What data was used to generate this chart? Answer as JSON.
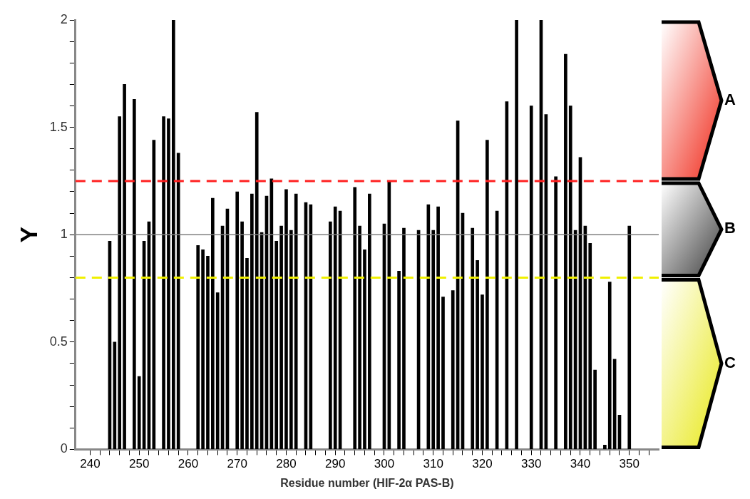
{
  "chart_data": {
    "type": "bar",
    "xlabel": "Residue number (HIF-2α PAS-B)",
    "ylabel": "Y",
    "x": [
      244,
      245,
      246,
      247,
      249,
      250,
      251,
      252,
      253,
      255,
      256,
      257,
      258,
      262,
      263,
      264,
      265,
      266,
      267,
      268,
      270,
      271,
      272,
      273,
      274,
      275,
      276,
      277,
      278,
      279,
      280,
      281,
      282,
      284,
      285,
      289,
      290,
      291,
      294,
      295,
      296,
      297,
      300,
      301,
      303,
      304,
      307,
      309,
      310,
      311,
      312,
      314,
      315,
      316,
      318,
      319,
      320,
      321,
      323,
      325,
      327,
      330,
      332,
      333,
      335,
      337,
      338,
      339,
      340,
      341,
      342,
      343,
      345,
      346,
      347,
      348,
      350
    ],
    "values": [
      0.97,
      0.5,
      1.55,
      1.7,
      1.63,
      0.34,
      0.97,
      1.06,
      1.44,
      1.55,
      1.54,
      2,
      1.38,
      0.95,
      0.93,
      0.9,
      1.17,
      0.73,
      1.04,
      1.12,
      1.2,
      1.06,
      0.89,
      1.19,
      1.57,
      1.01,
      1.18,
      1.26,
      0.97,
      1.04,
      1.21,
      1.02,
      1.19,
      1.15,
      1.14,
      1.06,
      1.13,
      1.11,
      1.22,
      1.04,
      0.93,
      1.19,
      1.05,
      1.25,
      0.83,
      1.03,
      1.02,
      1.14,
      1.02,
      1.13,
      0.71,
      0.74,
      1.53,
      1.1,
      1.03,
      0.88,
      0.72,
      1.44,
      1.11,
      1.62,
      2,
      1.6,
      2,
      1.56,
      1.27,
      1.84,
      1.6,
      1.02,
      1.36,
      1.04,
      0.96,
      0.37,
      0.02,
      0.78,
      0.42,
      0.16,
      1.04
    ],
    "color": "#000000",
    "xlim": [
      237,
      356
    ],
    "xticks": [
      240,
      {
        "value": 242,
        "label": null
      },
      {
        "value": 244,
        "label": null
      },
      {
        "value": 246,
        "label": null
      },
      {
        "value": 248,
        "label": null
      },
      250,
      {
        "value": 252,
        "label": null
      },
      {
        "value": 254,
        "label": null
      },
      {
        "value": 256,
        "label": null
      },
      {
        "value": 258,
        "label": null
      },
      260,
      {
        "value": 262,
        "label": null
      },
      {
        "value": 264,
        "label": null
      },
      {
        "value": 266,
        "label": null
      },
      {
        "value": 268,
        "label": null
      },
      270,
      {
        "value": 272,
        "label": null
      },
      {
        "value": 274,
        "label": null
      },
      {
        "value": 276,
        "label": null
      },
      {
        "value": 278,
        "label": null
      },
      280,
      {
        "value": 282,
        "label": null
      },
      {
        "value": 284,
        "label": null
      },
      {
        "value": 286,
        "label": null
      },
      {
        "value": 288,
        "label": null
      },
      290,
      {
        "value": 292,
        "label": null
      },
      {
        "value": 294,
        "label": null
      },
      {
        "value": 296,
        "label": null
      },
      {
        "value": 298,
        "label": null
      },
      300,
      {
        "value": 302,
        "label": null
      },
      {
        "value": 304,
        "label": null
      },
      {
        "value": 306,
        "label": null
      },
      {
        "value": 308,
        "label": null
      },
      310,
      {
        "value": 312,
        "label": null
      },
      {
        "value": 314,
        "label": null
      },
      {
        "value": 316,
        "label": null
      },
      {
        "value": 318,
        "label": null
      },
      320,
      {
        "value": 322,
        "label": null
      },
      {
        "value": 324,
        "label": null
      },
      {
        "value": 326,
        "label": null
      },
      {
        "value": 328,
        "label": null
      },
      330,
      {
        "value": 332,
        "label": null
      },
      {
        "value": 334,
        "label": null
      },
      {
        "value": 336,
        "label": null
      },
      {
        "value": 338,
        "label": null
      },
      340,
      {
        "value": 342,
        "label": null
      },
      {
        "value": 344,
        "label": null
      },
      {
        "value": 346,
        "label": null
      },
      {
        "value": 348,
        "label": null
      },
      350,
      {
        "value": 352,
        "label": null
      },
      {
        "value": 354,
        "label": null
      }
    ],
    "ylim": [
      0,
      2
    ],
    "yticks": [
      0,
      {
        "value": 0.1,
        "label": null
      },
      {
        "value": 0.2,
        "label": null
      },
      {
        "value": 0.3,
        "label": null
      },
      {
        "value": 0.4,
        "label": null
      },
      0.5,
      {
        "value": 0.6,
        "label": null
      },
      {
        "value": 0.7,
        "label": null
      },
      {
        "value": 0.8,
        "label": null
      },
      {
        "value": 0.9,
        "label": null
      },
      1,
      {
        "value": 1.1,
        "label": null
      },
      {
        "value": 1.2,
        "label": null
      },
      {
        "value": 1.3,
        "label": null
      },
      {
        "value": 1.4,
        "label": null
      },
      1.5,
      {
        "value": 1.6,
        "label": null
      },
      {
        "value": 1.7,
        "label": null
      },
      {
        "value": 1.8,
        "label": null
      },
      {
        "value": 1.9,
        "label": null
      },
      2
    ],
    "ref_lines": [
      {
        "axis": "y",
        "value": 1.25,
        "color": "#ff2020",
        "line_style": "dashed"
      },
      {
        "axis": "y",
        "value": 1,
        "color": "#808080",
        "line_style": "solid"
      },
      {
        "axis": "y",
        "value": 0.8,
        "color": "#f0f000",
        "line_style": "dashed"
      }
    ],
    "annotations": [
      "A",
      "B",
      "C"
    ],
    "grid": false,
    "legend": false
  }
}
